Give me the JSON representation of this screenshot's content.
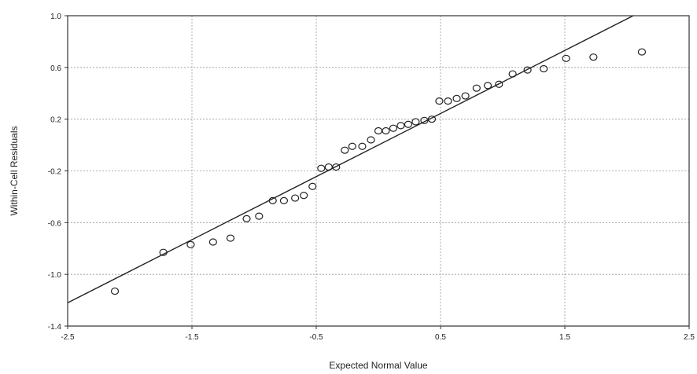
{
  "chart_data": {
    "type": "scatter",
    "title": "",
    "xlabel": "Expected Normal Value",
    "ylabel": "Within-Cell Residuals",
    "xlim": [
      -2.5,
      2.5
    ],
    "ylim": [
      -1.4,
      1.0
    ],
    "grid": true,
    "x_ticks": [
      -2.5,
      -1.5,
      -0.5,
      0.5,
      1.5,
      2.5
    ],
    "x_tick_labels": [
      "-2.5",
      "-1.5",
      "-0.5",
      "0.5",
      "1.5",
      "2.5"
    ],
    "y_ticks": [
      1.0,
      0.6,
      0.2,
      -0.2,
      -0.6,
      -1.0,
      -1.4
    ],
    "y_tick_labels": [
      "1.0",
      "0.6",
      "0.2",
      "-0.2",
      "-0.6",
      "-1.0",
      "-1.4"
    ],
    "reference_line": {
      "x": [
        -2.5,
        2.05
      ],
      "y": [
        -1.22,
        1.0
      ]
    },
    "points": [
      {
        "x": -2.12,
        "y": -1.13
      },
      {
        "x": -1.73,
        "y": -0.83
      },
      {
        "x": -1.51,
        "y": -0.77
      },
      {
        "x": -1.33,
        "y": -0.75
      },
      {
        "x": -1.19,
        "y": -0.72
      },
      {
        "x": -1.06,
        "y": -0.57
      },
      {
        "x": -0.96,
        "y": -0.55
      },
      {
        "x": -0.85,
        "y": -0.43
      },
      {
        "x": -0.76,
        "y": -0.43
      },
      {
        "x": -0.67,
        "y": -0.41
      },
      {
        "x": -0.6,
        "y": -0.39
      },
      {
        "x": -0.53,
        "y": -0.32
      },
      {
        "x": -0.46,
        "y": -0.18
      },
      {
        "x": -0.4,
        "y": -0.17
      },
      {
        "x": -0.34,
        "y": -0.17
      },
      {
        "x": -0.27,
        "y": -0.04
      },
      {
        "x": -0.21,
        "y": -0.01
      },
      {
        "x": -0.13,
        "y": -0.01
      },
      {
        "x": -0.06,
        "y": 0.04
      },
      {
        "x": 0.0,
        "y": 0.11
      },
      {
        "x": 0.06,
        "y": 0.11
      },
      {
        "x": 0.12,
        "y": 0.13
      },
      {
        "x": 0.18,
        "y": 0.15
      },
      {
        "x": 0.24,
        "y": 0.16
      },
      {
        "x": 0.3,
        "y": 0.18
      },
      {
        "x": 0.37,
        "y": 0.19
      },
      {
        "x": 0.43,
        "y": 0.2
      },
      {
        "x": 0.49,
        "y": 0.34
      },
      {
        "x": 0.56,
        "y": 0.34
      },
      {
        "x": 0.63,
        "y": 0.36
      },
      {
        "x": 0.7,
        "y": 0.38
      },
      {
        "x": 0.79,
        "y": 0.44
      },
      {
        "x": 0.88,
        "y": 0.46
      },
      {
        "x": 0.97,
        "y": 0.47
      },
      {
        "x": 1.08,
        "y": 0.55
      },
      {
        "x": 1.2,
        "y": 0.58
      },
      {
        "x": 1.33,
        "y": 0.59
      },
      {
        "x": 1.51,
        "y": 0.67
      },
      {
        "x": 1.73,
        "y": 0.68
      },
      {
        "x": 2.12,
        "y": 0.72
      }
    ]
  }
}
